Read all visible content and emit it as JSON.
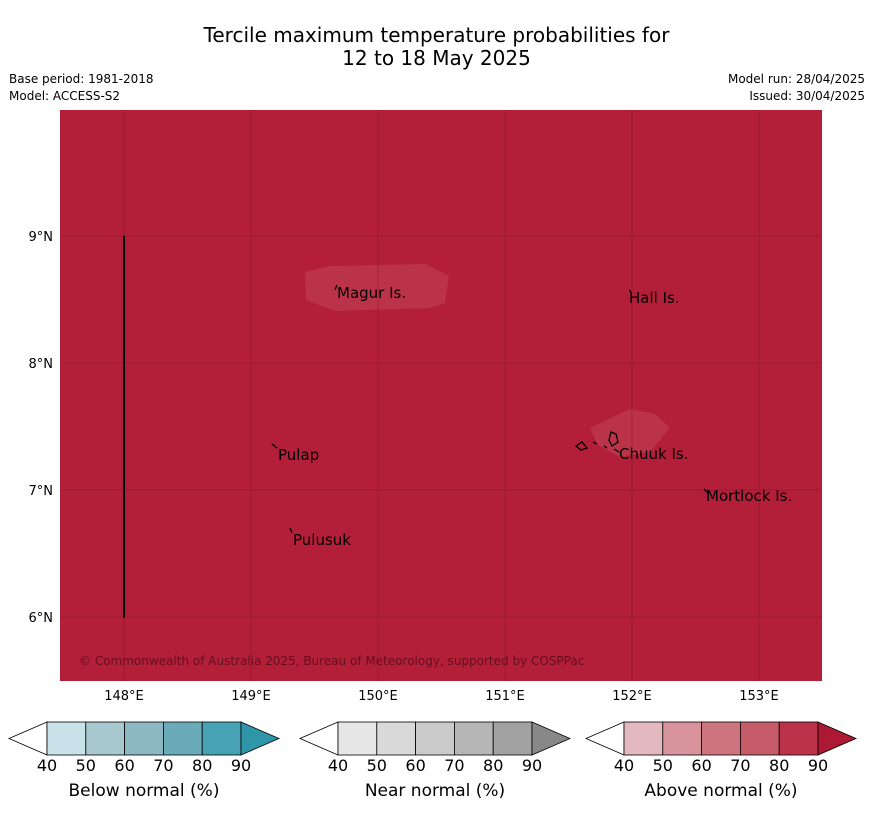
{
  "header": {
    "title_line1": "Tercile maximum temperature probabilities for",
    "title_line2": "12 to 18 May 2025",
    "base_period": "Base period: 1981-2018",
    "model": "Model: ACCESS-S2",
    "model_run": "Model run: 28/04/2025",
    "issued": "Issued: 30/04/2025"
  },
  "map": {
    "fill_color": "#b31e38",
    "lon_ticks": [
      "148°E",
      "149°E",
      "150°E",
      "151°E",
      "152°E",
      "153°E"
    ],
    "lat_ticks": [
      "9°N",
      "8°N",
      "7°N",
      "6°N"
    ],
    "places": [
      {
        "name": "Magur Is."
      },
      {
        "name": "Hall Is."
      },
      {
        "name": "Pulap"
      },
      {
        "name": "Chuuk Is."
      },
      {
        "name": "Mortlock Is."
      },
      {
        "name": "Pulusuk"
      }
    ],
    "copyright": "© Commonwealth of Australia 2025, Bureau of Meteorology, supported by COSPPac"
  },
  "legend": {
    "ticks": [
      "40",
      "50",
      "60",
      "70",
      "80",
      "90"
    ],
    "bars": [
      {
        "title": "Below normal (%)",
        "colors": [
          "#ffffff",
          "#c9e1e8",
          "#a7c8cf",
          "#8bb8c3",
          "#6aabb8",
          "#47a3b4",
          "#2f95a8"
        ]
      },
      {
        "title": "Near normal (%)",
        "colors": [
          "#ffffff",
          "#e7e7e7",
          "#d9d9d9",
          "#cacaca",
          "#b6b6b6",
          "#a2a2a2",
          "#888888"
        ]
      },
      {
        "title": "Above normal (%)",
        "colors": [
          "#ffffff",
          "#e3b8be",
          "#d8939c",
          "#cd747f",
          "#c65b6a",
          "#bb3349",
          "#ad1935"
        ]
      }
    ]
  }
}
